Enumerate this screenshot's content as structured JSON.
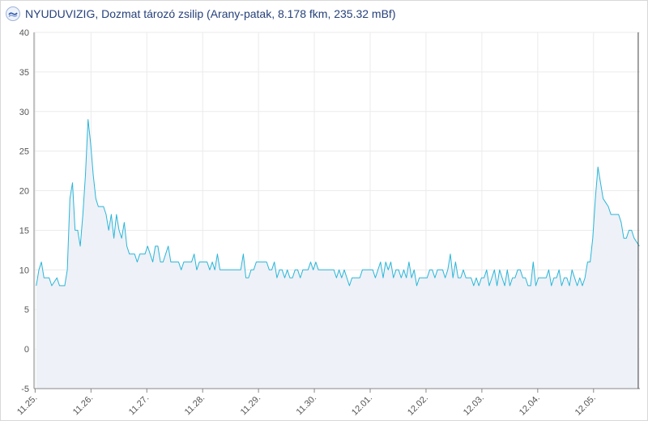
{
  "header": {
    "title": "NYUDUVIZIG, Dozmat tározó zsilip (Arany-patak, 8.178 fkm, 235.32 mBf)",
    "logo_icon": "nyuduvizig-logo-icon"
  },
  "colors": {
    "line": "#29b6d8",
    "area": "#eef1f7",
    "grid": "#ebebeb",
    "axis": "#888888",
    "current_marker": "#444444"
  },
  "chart_data": {
    "type": "area",
    "x_tick_labels": [
      "11.25.",
      "11.26.",
      "11.27.",
      "11.28.",
      "11.29.",
      "11.30.",
      "12.01.",
      "12.02.",
      "12.03.",
      "12.04.",
      "12.05."
    ],
    "y_ticks": [
      -5,
      0,
      5,
      10,
      15,
      20,
      25,
      30,
      35,
      40
    ],
    "ylim": [
      -5,
      40
    ],
    "xlim_days": [
      -0.02,
      10.83
    ],
    "grid": true,
    "current_time_marker_day": 10.8,
    "series": [
      {
        "values": [
          8,
          10,
          11,
          9,
          9,
          9,
          8,
          8.5,
          9,
          8,
          8,
          8,
          10,
          19,
          21,
          15,
          15,
          13,
          17,
          22,
          29,
          26,
          22,
          19,
          18,
          18,
          18,
          17,
          15,
          17,
          14,
          17,
          15,
          14,
          16,
          13,
          12,
          12,
          12,
          11,
          12,
          12,
          12,
          13,
          12,
          11,
          13,
          13,
          11,
          11,
          12,
          13,
          11,
          11,
          11,
          11,
          10,
          11,
          11,
          11,
          11,
          12,
          10,
          11,
          11,
          11,
          11,
          10,
          11,
          10,
          12,
          10,
          10,
          10,
          10,
          10,
          10,
          10,
          10,
          10,
          12,
          9,
          9,
          10,
          10,
          11,
          11,
          11,
          11,
          11,
          10,
          10,
          11,
          9,
          10,
          10,
          9,
          10,
          9,
          9,
          10,
          10,
          9,
          10,
          10,
          10,
          11,
          10,
          11,
          10,
          10,
          10,
          10,
          10,
          10,
          10,
          9,
          10,
          9,
          10,
          9,
          8,
          9,
          9,
          9,
          9,
          10,
          10,
          10,
          10,
          10,
          9,
          10,
          11,
          9,
          11,
          10,
          11,
          9,
          10,
          10,
          9,
          10,
          9,
          11,
          9,
          10,
          8,
          9,
          9,
          9,
          9,
          10,
          10,
          9,
          10,
          10,
          10,
          9,
          10,
          12,
          9,
          11,
          9,
          9,
          10,
          9,
          9,
          9,
          8,
          9,
          8,
          9,
          9,
          10,
          8,
          9,
          10,
          8,
          10,
          9,
          8,
          10,
          8,
          9,
          9,
          10,
          10,
          9,
          9,
          8,
          8,
          11,
          8,
          9,
          9,
          9,
          9,
          10,
          8,
          9,
          9,
          10,
          8,
          9,
          9,
          8,
          10,
          9,
          8,
          9,
          8,
          9,
          11,
          11,
          14,
          19,
          23,
          21,
          19,
          18.5,
          18,
          17,
          17,
          17,
          17,
          16,
          14,
          14,
          15,
          15,
          14,
          13.5,
          13
        ]
      }
    ]
  }
}
